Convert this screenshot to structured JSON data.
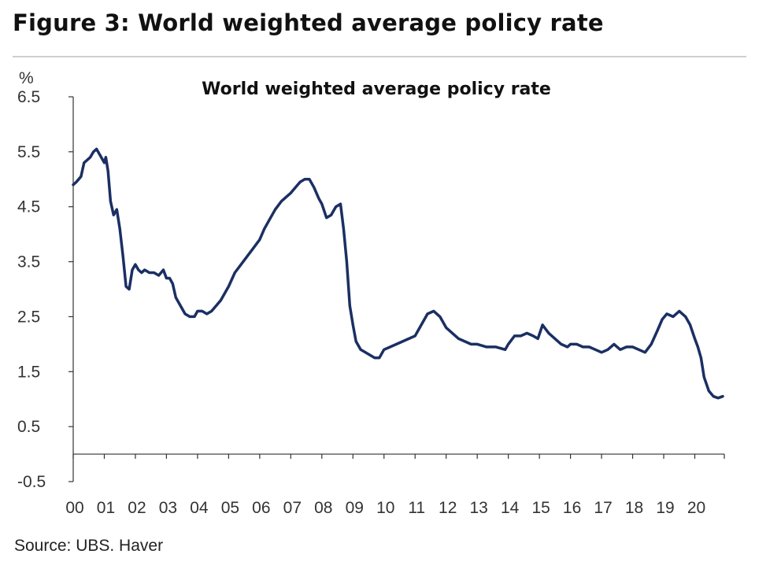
{
  "figure_title": "Figure 3: World weighted average policy rate",
  "source": "Source:  UBS. Haver",
  "colors": {
    "line": "#1b2f63",
    "axis": "#333333"
  },
  "chart_data": {
    "type": "line",
    "title": "World weighted average policy rate",
    "ylabel": "%",
    "xlabel": "",
    "ylim": [
      -0.5,
      6.5
    ],
    "yticks": [
      6.5,
      5.5,
      4.5,
      3.5,
      2.5,
      1.5,
      0.5,
      -0.5
    ],
    "ytick_labels": [
      "6.5",
      "5.5",
      "4.5",
      "3.5",
      "2.5",
      "1.5",
      "0.5",
      "-0.5"
    ],
    "xlim": [
      2000,
      2020.95
    ],
    "xticks": [
      2000,
      2001,
      2002,
      2003,
      2004,
      2005,
      2006,
      2007,
      2008,
      2009,
      2010,
      2011,
      2012,
      2013,
      2014,
      2015,
      2016,
      2017,
      2018,
      2019,
      2020
    ],
    "xtick_labels": [
      "00",
      "01",
      "02",
      "03",
      "04",
      "05",
      "06",
      "07",
      "08",
      "09",
      "10",
      "11",
      "12",
      "13",
      "14",
      "15",
      "16",
      "17",
      "18",
      "19",
      "20"
    ],
    "grid": false,
    "series": [
      {
        "name": "World weighted average policy rate",
        "x": [
          2000.0,
          2000.1,
          2000.25,
          2000.35,
          2000.45,
          2000.55,
          2000.65,
          2000.75,
          2000.85,
          2001.0,
          2001.05,
          2001.12,
          2001.2,
          2001.3,
          2001.4,
          2001.5,
          2001.6,
          2001.7,
          2001.8,
          2001.9,
          2002.0,
          2002.1,
          2002.2,
          2002.3,
          2002.45,
          2002.6,
          2002.75,
          2002.9,
          2003.0,
          2003.1,
          2003.2,
          2003.3,
          2003.45,
          2003.6,
          2003.75,
          2003.9,
          2004.0,
          2004.15,
          2004.3,
          2004.45,
          2004.6,
          2004.75,
          2004.9,
          2005.0,
          2005.2,
          2005.4,
          2005.6,
          2005.8,
          2006.0,
          2006.15,
          2006.3,
          2006.5,
          2006.7,
          2006.9,
          2007.0,
          2007.15,
          2007.3,
          2007.45,
          2007.6,
          2007.75,
          2007.9,
          2008.0,
          2008.15,
          2008.3,
          2008.45,
          2008.6,
          2008.7,
          2008.8,
          2008.9,
          2009.0,
          2009.1,
          2009.25,
          2009.4,
          2009.55,
          2009.7,
          2009.85,
          2010.0,
          2010.2,
          2010.4,
          2010.6,
          2010.8,
          2011.0,
          2011.2,
          2011.4,
          2011.6,
          2011.8,
          2012.0,
          2012.2,
          2012.4,
          2012.6,
          2012.8,
          2013.0,
          2013.3,
          2013.6,
          2013.9,
          2014.0,
          2014.2,
          2014.4,
          2014.6,
          2014.8,
          2014.95,
          2015.1,
          2015.3,
          2015.5,
          2015.7,
          2015.9,
          2016.0,
          2016.2,
          2016.4,
          2016.6,
          2016.8,
          2017.0,
          2017.2,
          2017.4,
          2017.6,
          2017.8,
          2018.0,
          2018.2,
          2018.4,
          2018.6,
          2018.8,
          2018.95,
          2019.1,
          2019.3,
          2019.5,
          2019.7,
          2019.85,
          2020.0,
          2020.1,
          2020.2,
          2020.3,
          2020.45,
          2020.6,
          2020.75,
          2020.9
        ],
        "y": [
          4.9,
          4.95,
          5.05,
          5.3,
          5.35,
          5.4,
          5.5,
          5.55,
          5.45,
          5.3,
          5.4,
          5.15,
          4.6,
          4.35,
          4.45,
          4.1,
          3.6,
          3.05,
          3.0,
          3.35,
          3.45,
          3.35,
          3.3,
          3.35,
          3.3,
          3.3,
          3.25,
          3.35,
          3.2,
          3.2,
          3.1,
          2.85,
          2.7,
          2.55,
          2.5,
          2.5,
          2.6,
          2.6,
          2.55,
          2.6,
          2.7,
          2.8,
          2.95,
          3.05,
          3.3,
          3.45,
          3.6,
          3.75,
          3.9,
          4.1,
          4.25,
          4.45,
          4.6,
          4.7,
          4.75,
          4.85,
          4.95,
          5.0,
          5.0,
          4.85,
          4.65,
          4.55,
          4.3,
          4.35,
          4.5,
          4.55,
          4.1,
          3.5,
          2.7,
          2.35,
          2.05,
          1.9,
          1.85,
          1.8,
          1.75,
          1.75,
          1.9,
          1.95,
          2.0,
          2.05,
          2.1,
          2.15,
          2.35,
          2.55,
          2.6,
          2.5,
          2.3,
          2.2,
          2.1,
          2.05,
          2.0,
          2.0,
          1.95,
          1.95,
          1.9,
          2.0,
          2.15,
          2.15,
          2.2,
          2.15,
          2.1,
          2.35,
          2.2,
          2.1,
          2.0,
          1.95,
          2.0,
          2.0,
          1.95,
          1.95,
          1.9,
          1.85,
          1.9,
          2.0,
          1.9,
          1.95,
          1.95,
          1.9,
          1.85,
          2.0,
          2.25,
          2.45,
          2.55,
          2.5,
          2.6,
          2.5,
          2.35,
          2.1,
          1.95,
          1.75,
          1.4,
          1.15,
          1.05,
          1.02,
          1.05
        ]
      }
    ]
  }
}
